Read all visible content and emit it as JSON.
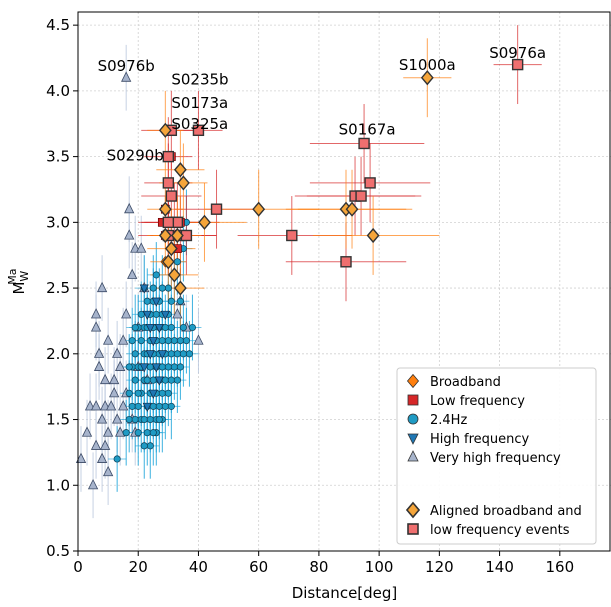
{
  "chart_data": {
    "type": "scatter",
    "title": "",
    "xlabel": "Distance[deg]",
    "ylabel_base": "M",
    "ylabel_sub": "W",
    "ylabel_sup": "Ma",
    "xlim": [
      0,
      177
    ],
    "ylim": [
      0.5,
      4.6
    ],
    "xticks": [
      0,
      20,
      40,
      60,
      80,
      100,
      120,
      140,
      160
    ],
    "yticks": [
      0.5,
      1.0,
      1.5,
      2.0,
      2.5,
      3.0,
      3.5,
      4.0,
      4.5
    ],
    "grid": true,
    "legend_position": "lower-right",
    "colors": {
      "broadband": "#ff7f0e",
      "low_frequency": "#d62728",
      "hz24": "#1f9bc4",
      "hz24_bar": "#1aa3d9",
      "high_frequency": "#1f77b4",
      "very_high_frequency": "#a7b4cc",
      "aligned_broadband": "#f5a53a",
      "aligned_lowfreq": "#ef6f6f"
    },
    "legend": [
      {
        "label": "Broadband",
        "marker": "diamond",
        "color": "#ff7f0e"
      },
      {
        "label": "Low frequency",
        "marker": "square",
        "color": "#d62728"
      },
      {
        "label": "2.4Hz",
        "marker": "circle",
        "color": "#1f9bc4"
      },
      {
        "label": "High frequency",
        "marker": "triangle-down",
        "color": "#1f77b4"
      },
      {
        "label": "Very high frequency",
        "marker": "triangle-up",
        "color": "#a7b4cc"
      },
      {
        "label": "Aligned broadband and",
        "marker": "diamond-outlined",
        "color": "#f5a53a"
      },
      {
        "label": "low frequency events",
        "marker": "square-outlined",
        "color": "#ef6f6f"
      }
    ],
    "annotations": [
      {
        "text": "S0976b",
        "x": 16,
        "y": 4.15
      },
      {
        "text": "S0235b",
        "x": 31,
        "y": 4.05
      },
      {
        "text": "S0173a",
        "x": 31,
        "y": 3.87
      },
      {
        "text": "S0325a",
        "x": 31,
        "y": 3.71
      },
      {
        "text": "S0290b",
        "x": 19,
        "y": 3.47
      },
      {
        "text": "S1000a",
        "x": 116,
        "y": 4.16
      },
      {
        "text": "S0976a",
        "x": 146,
        "y": 4.25
      },
      {
        "text": "S0167a",
        "x": 96,
        "y": 3.67
      }
    ],
    "series": [
      {
        "name": "Very high frequency",
        "key": "vhf",
        "points": [
          [
            1,
            1.2
          ],
          [
            3,
            1.4
          ],
          [
            4,
            1.6
          ],
          [
            5,
            1.0
          ],
          [
            6,
            1.3
          ],
          [
            6,
            1.6
          ],
          [
            6,
            2.2
          ],
          [
            6,
            2.3
          ],
          [
            7,
            1.9
          ],
          [
            7,
            2.0
          ],
          [
            8,
            1.5
          ],
          [
            8,
            1.2
          ],
          [
            8,
            2.5
          ],
          [
            9,
            1.8
          ],
          [
            9,
            1.6
          ],
          [
            10,
            1.1
          ],
          [
            10,
            1.4
          ],
          [
            10,
            2.1
          ],
          [
            11,
            1.6
          ],
          [
            12,
            1.8
          ],
          [
            13,
            1.5
          ],
          [
            13,
            2.0
          ],
          [
            14,
            1.4
          ],
          [
            15,
            1.6
          ],
          [
            15,
            2.1
          ],
          [
            16,
            2.3
          ],
          [
            16,
            1.7
          ],
          [
            17,
            3.1
          ],
          [
            17,
            2.9
          ],
          [
            18,
            2.6
          ],
          [
            19,
            2.8
          ],
          [
            19,
            1.4
          ],
          [
            20,
            1.9
          ],
          [
            21,
            2.8
          ],
          [
            22,
            2.5
          ],
          [
            16,
            4.1
          ],
          [
            12,
            1.7
          ],
          [
            18,
            1.5
          ],
          [
            40,
            2.1
          ],
          [
            36,
            2.2
          ],
          [
            33,
            2.3
          ],
          [
            34,
            2.4
          ],
          [
            14,
            1.9
          ],
          [
            20,
            2.2
          ],
          [
            23,
            1.8
          ],
          [
            9,
            1.3
          ]
        ]
      },
      {
        "name": "2.4Hz",
        "key": "hz24",
        "points": [
          [
            13,
            1.2
          ],
          [
            16,
            1.4
          ],
          [
            17,
            1.5
          ],
          [
            17,
            1.7
          ],
          [
            18,
            1.6
          ],
          [
            18,
            1.9
          ],
          [
            18,
            2.1
          ],
          [
            19,
            1.5
          ],
          [
            19,
            1.8
          ],
          [
            19,
            2.0
          ],
          [
            20,
            1.4
          ],
          [
            20,
            1.6
          ],
          [
            20,
            1.9
          ],
          [
            20,
            2.2
          ],
          [
            21,
            1.5
          ],
          [
            21,
            1.7
          ],
          [
            21,
            1.9
          ],
          [
            21,
            2.1
          ],
          [
            21,
            2.3
          ],
          [
            22,
            1.5
          ],
          [
            22,
            1.8
          ],
          [
            22,
            2.0
          ],
          [
            22,
            2.2
          ],
          [
            23,
            1.4
          ],
          [
            23,
            1.6
          ],
          [
            23,
            1.8
          ],
          [
            23,
            2.0
          ],
          [
            23,
            2.2
          ],
          [
            23,
            2.4
          ],
          [
            24,
            1.5
          ],
          [
            24,
            1.7
          ],
          [
            24,
            1.9
          ],
          [
            24,
            2.1
          ],
          [
            24,
            2.3
          ],
          [
            25,
            1.6
          ],
          [
            25,
            1.8
          ],
          [
            25,
            2.0
          ],
          [
            25,
            2.2
          ],
          [
            25,
            2.4
          ],
          [
            26,
            1.5
          ],
          [
            26,
            1.7
          ],
          [
            26,
            1.9
          ],
          [
            26,
            2.1
          ],
          [
            26,
            2.3
          ],
          [
            26,
            2.6
          ],
          [
            27,
            1.6
          ],
          [
            27,
            1.8
          ],
          [
            27,
            2.0
          ],
          [
            27,
            2.2
          ],
          [
            27,
            2.4
          ],
          [
            28,
            1.7
          ],
          [
            28,
            1.9
          ],
          [
            28,
            2.1
          ],
          [
            28,
            2.3
          ],
          [
            29,
            1.6
          ],
          [
            29,
            1.8
          ],
          [
            29,
            2.0
          ],
          [
            29,
            2.2
          ],
          [
            30,
            1.7
          ],
          [
            30,
            1.9
          ],
          [
            30,
            2.1
          ],
          [
            30,
            2.3
          ],
          [
            31,
            1.8
          ],
          [
            31,
            2.0
          ],
          [
            31,
            2.2
          ],
          [
            31,
            2.4
          ],
          [
            32,
            1.9
          ],
          [
            32,
            2.1
          ],
          [
            33,
            1.8
          ],
          [
            33,
            2.0
          ],
          [
            34,
            1.9
          ],
          [
            34,
            2.1
          ],
          [
            35,
            2.0
          ],
          [
            35,
            2.2
          ],
          [
            36,
            2.1
          ],
          [
            37,
            2.0
          ],
          [
            38,
            2.2
          ],
          [
            34,
            2.4
          ],
          [
            30,
            2.5
          ],
          [
            28,
            2.5
          ],
          [
            25,
            2.5
          ],
          [
            22,
            2.5
          ],
          [
            19,
            2.2
          ],
          [
            17,
            1.9
          ],
          [
            24,
            1.3
          ],
          [
            26,
            1.4
          ],
          [
            28,
            1.5
          ],
          [
            22,
            1.3
          ],
          [
            32,
            2.6
          ],
          [
            36,
            3.0
          ],
          [
            35,
            2.8
          ],
          [
            33,
            2.7
          ],
          [
            20,
            1.7
          ],
          [
            27,
            1.5
          ],
          [
            31,
            1.6
          ],
          [
            25,
            1.4
          ]
        ]
      },
      {
        "name": "High frequency",
        "key": "hf",
        "points": [
          [
            22,
            2.5
          ],
          [
            23,
            2.3
          ],
          [
            24,
            2.2
          ],
          [
            25,
            2.1
          ],
          [
            26,
            2.4
          ],
          [
            27,
            2.2
          ],
          [
            28,
            2.0
          ],
          [
            24,
            2.0
          ],
          [
            26,
            1.9
          ],
          [
            29,
            2.3
          ],
          [
            22,
            1.9
          ],
          [
            25,
            1.7
          ],
          [
            27,
            1.8
          ],
          [
            23,
            1.6
          ]
        ]
      },
      {
        "name": "Low frequency",
        "key": "lf",
        "points": [
          [
            28,
            3.0
          ],
          [
            29,
            2.9
          ],
          [
            30,
            3.3
          ],
          [
            31,
            3.5
          ],
          [
            31,
            3.2
          ],
          [
            32,
            3.0
          ],
          [
            32,
            2.9
          ],
          [
            33,
            2.8
          ],
          [
            34,
            3.0
          ],
          [
            35,
            2.9
          ],
          [
            30,
            3.7
          ],
          [
            40,
            3.7
          ],
          [
            29,
            3.1
          ],
          [
            33,
            3.0
          ]
        ]
      },
      {
        "name": "Broadband",
        "key": "bb",
        "points": [
          [
            29,
            3.7
          ],
          [
            29,
            3.1
          ],
          [
            29,
            2.7
          ],
          [
            30,
            2.9
          ],
          [
            31,
            3.0
          ],
          [
            32,
            2.6
          ],
          [
            33,
            2.9
          ],
          [
            34,
            3.4
          ],
          [
            35,
            3.3
          ],
          [
            34,
            2.5
          ],
          [
            36,
            2.9
          ],
          [
            31,
            2.8
          ]
        ]
      },
      {
        "name": "Aligned low frequency events",
        "key": "alf",
        "points": [
          [
            31,
            3.7
          ],
          [
            40,
            3.7
          ],
          [
            30,
            3.5
          ],
          [
            30,
            3.3
          ],
          [
            31,
            3.2
          ],
          [
            30,
            2.9
          ],
          [
            32,
            3.0
          ],
          [
            33,
            3.0
          ],
          [
            34,
            2.9
          ],
          [
            36,
            2.9
          ],
          [
            46,
            3.1
          ],
          [
            71,
            2.9
          ],
          [
            89,
            2.7
          ],
          [
            92,
            3.2
          ],
          [
            94,
            3.2
          ],
          [
            95,
            3.6
          ],
          [
            97,
            3.3
          ],
          [
            146,
            4.2
          ],
          [
            30,
            3.0
          ]
        ],
        "xerr": [
          [
            10,
            10
          ],
          [
            8,
            8
          ],
          [
            8,
            8
          ],
          [
            8,
            8
          ],
          [
            10,
            10
          ],
          [
            10,
            12
          ],
          [
            10,
            12
          ],
          [
            12,
            14
          ],
          [
            10,
            12
          ],
          [
            8,
            10
          ],
          [
            14,
            16
          ],
          [
            18,
            20
          ],
          [
            20,
            20
          ],
          [
            20,
            20
          ],
          [
            18,
            20
          ],
          [
            18,
            20
          ],
          [
            20,
            20
          ],
          [
            8,
            8
          ],
          [
            10,
            10
          ]
        ],
        "yerr": [
          0.3,
          0.3,
          0.3,
          0.3,
          0.3,
          0.3,
          0.3,
          0.3,
          0.3,
          0.3,
          0.3,
          0.3,
          0.3,
          0.3,
          0.3,
          0.3,
          0.3,
          0.3,
          0.3
        ]
      },
      {
        "name": "Aligned broadband events",
        "key": "abb",
        "points": [
          [
            29,
            3.7
          ],
          [
            29,
            3.1
          ],
          [
            29,
            2.9
          ],
          [
            30,
            2.7
          ],
          [
            31,
            2.8
          ],
          [
            32,
            2.6
          ],
          [
            33,
            2.9
          ],
          [
            34,
            3.4
          ],
          [
            35,
            3.3
          ],
          [
            34,
            2.5
          ],
          [
            42,
            3.0
          ],
          [
            60,
            3.1
          ],
          [
            89,
            3.1
          ],
          [
            91,
            3.1
          ],
          [
            98,
            2.9
          ],
          [
            116,
            4.1
          ]
        ],
        "xerr": [
          [
            6,
            6
          ],
          [
            6,
            6
          ],
          [
            6,
            6
          ],
          [
            6,
            6
          ],
          [
            8,
            8
          ],
          [
            8,
            8
          ],
          [
            8,
            8
          ],
          [
            8,
            8
          ],
          [
            8,
            8
          ],
          [
            8,
            8
          ],
          [
            12,
            14
          ],
          [
            18,
            20
          ],
          [
            20,
            20
          ],
          [
            18,
            20
          ],
          [
            20,
            22
          ],
          [
            8,
            8
          ]
        ],
        "yerr": [
          0.3,
          0.3,
          0.3,
          0.3,
          0.3,
          0.3,
          0.3,
          0.3,
          0.3,
          0.3,
          0.3,
          0.3,
          0.3,
          0.3,
          0.3,
          0.3
        ]
      }
    ]
  }
}
